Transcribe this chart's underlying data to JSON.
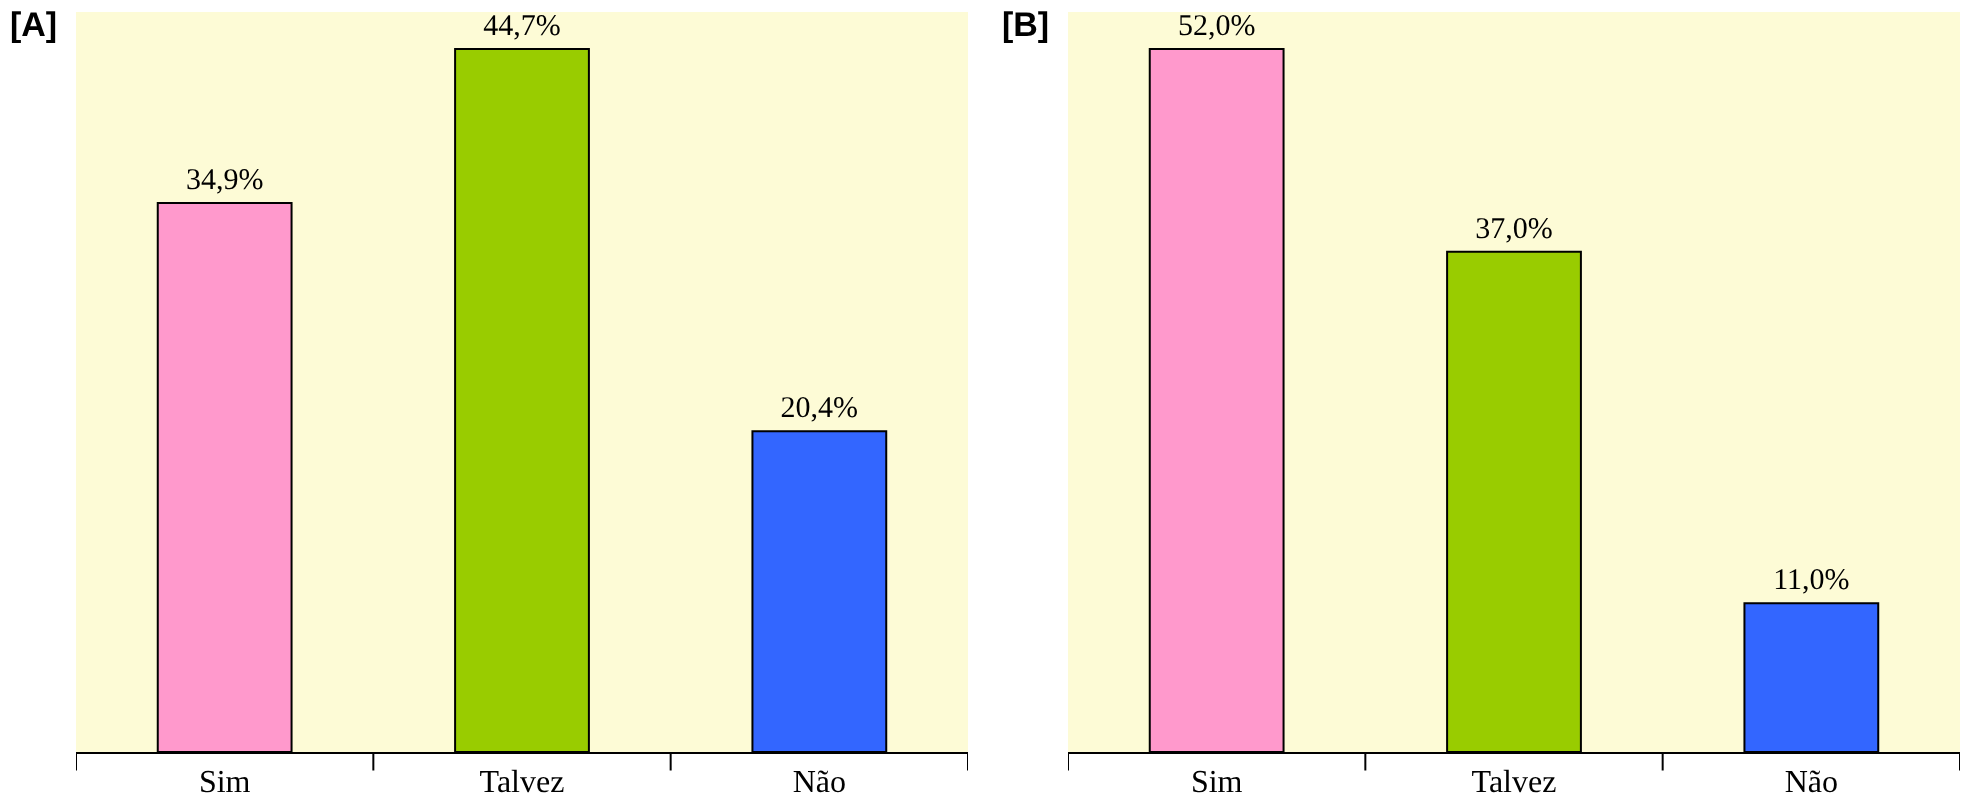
{
  "chart_data": [
    {
      "type": "bar",
      "title": "[A]",
      "categories": [
        "Sim",
        "Talvez",
        "Não"
      ],
      "values": [
        34.9,
        44.7,
        20.4
      ],
      "colors": [
        "#ff99cc",
        "#99cc00",
        "#3366ff"
      ],
      "value_labels": [
        "34,9%",
        "44,7%",
        "20,4%"
      ],
      "tick_labels": "x"
    },
    {
      "type": "bar",
      "title": "[B]",
      "categories": [
        "Sim",
        "Talvez",
        "Não"
      ],
      "values": [
        52.0,
        37.0,
        11.0
      ],
      "colors": [
        "#ff99cc",
        "#99cc00",
        "#3366ff"
      ],
      "value_labels": [
        "52,0%",
        "37,0%",
        "11,0%"
      ],
      "tick_labels": "x"
    }
  ]
}
